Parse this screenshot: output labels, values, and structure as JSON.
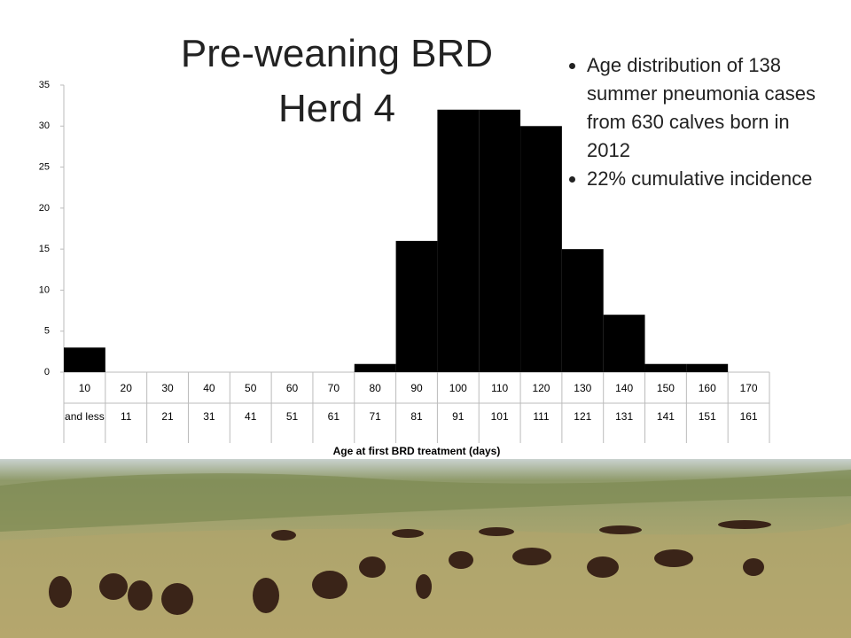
{
  "chart_data": {
    "type": "bar",
    "title": "Pre-weaning BRD Herd 4",
    "bullets": [
      "Age distribution of 138 summer pneumonia cases from 630 calves born in 2012",
      "22% cumulative incidence"
    ],
    "x_label": "Age at first BRD treatment (days)",
    "categories": [
      "10",
      "20",
      "30",
      "40",
      "50",
      "60",
      "70",
      "80",
      "90",
      "100",
      "110",
      "120",
      "130",
      "140",
      "150",
      "160",
      "170"
    ],
    "category_sublabels": [
      "and less",
      "11",
      "21",
      "31",
      "41",
      "51",
      "61",
      "71",
      "81",
      "91",
      "101",
      "111",
      "121",
      "131",
      "141",
      "151",
      "161"
    ],
    "values": [
      3,
      0,
      0,
      0,
      0,
      0,
      0,
      1,
      16,
      32,
      32,
      30,
      15,
      7,
      1,
      1,
      0
    ],
    "color": "#000000",
    "ylim": [
      0,
      35
    ],
    "yticks": [
      0,
      5,
      10,
      15,
      20,
      25,
      30,
      35
    ]
  }
}
